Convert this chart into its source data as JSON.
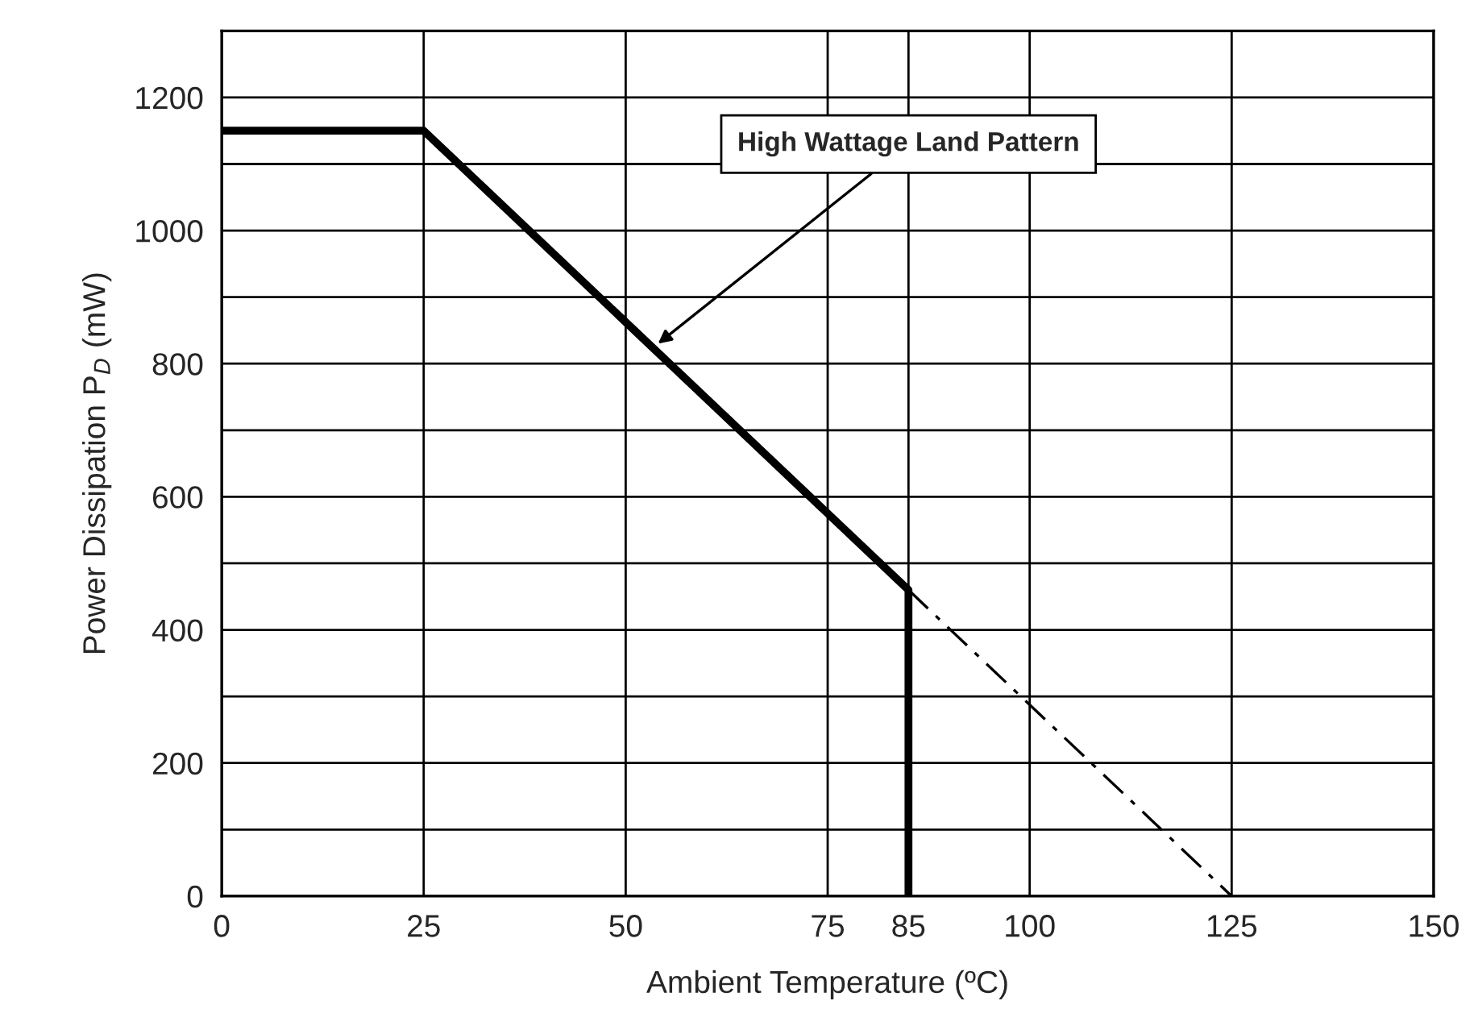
{
  "chart_data": {
    "type": "line",
    "xlabel": "Ambient Temperature (ºC)",
    "ylabel": "Power Dissipation P$_{D}$ (mW)",
    "xlim": [
      0,
      150
    ],
    "xticks": [
      0,
      25,
      50,
      75,
      85,
      100,
      125,
      150
    ],
    "ylim": [
      0,
      1300
    ],
    "yticks": [
      0,
      {
        "value": 100,
        "label": null
      },
      200,
      {
        "value": 300,
        "label": null
      },
      400,
      {
        "value": 500,
        "label": null
      },
      600,
      {
        "value": 700,
        "label": null
      },
      800,
      {
        "value": 900,
        "label": null
      },
      1000,
      {
        "value": 1100,
        "label": null
      },
      1200
    ],
    "grid": true,
    "legend": false,
    "series": [
      {
        "color": "#000000",
        "line_style": "solid",
        "x": [
          0,
          25,
          85,
          85
        ],
        "values": [
          1150,
          1150,
          460,
          0
        ]
      },
      {
        "color": "#000000",
        "line_style": "dashed",
        "x": [
          85,
          125
        ],
        "values": [
          460,
          0
        ]
      }
    ],
    "annotations": [
      {
        "text": "High Wattage Land Pattern",
        "x": 54,
        "y": 830
      }
    ]
  }
}
